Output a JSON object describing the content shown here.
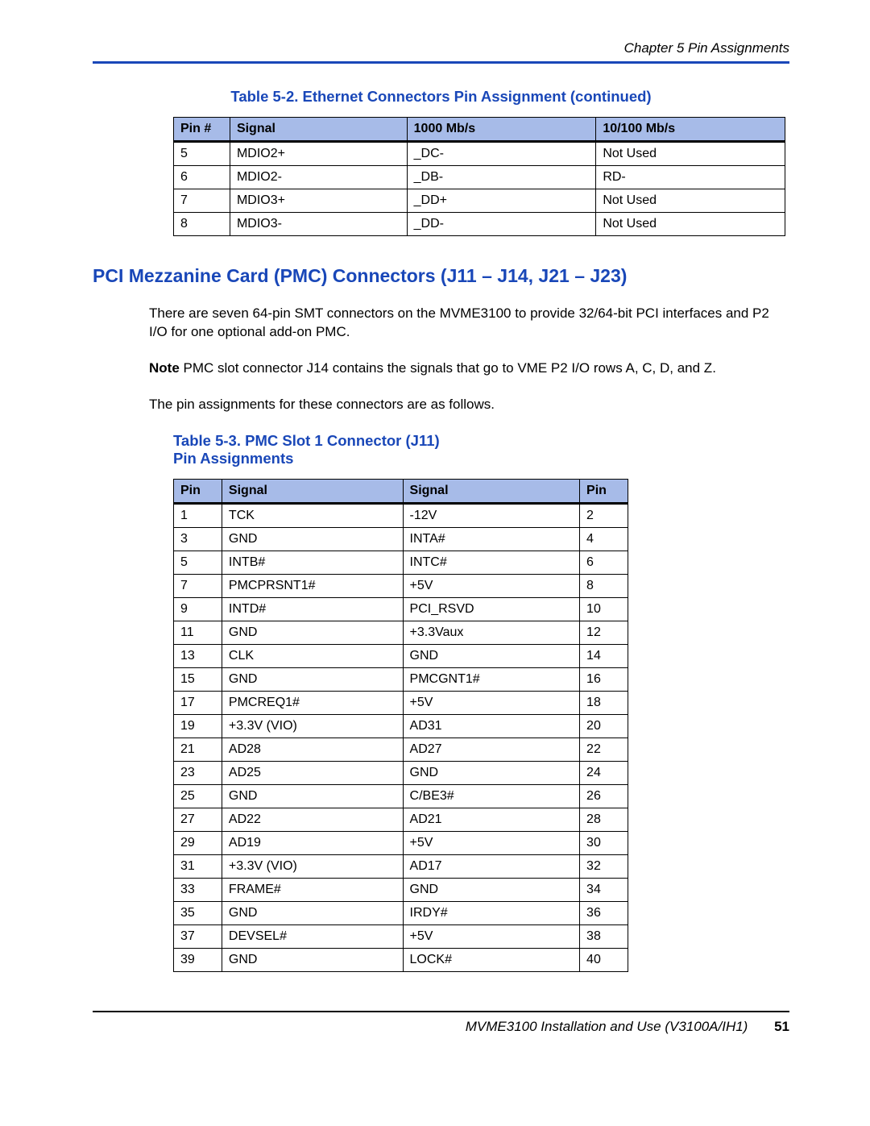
{
  "chapter_header": "Chapter 5  Pin Assignments",
  "table1": {
    "caption": "Table 5-2. Ethernet Connectors Pin Assignment (continued)",
    "caption_color": "#1947b8",
    "header_bg": "#a7bbe8",
    "columns": [
      "Pin #",
      "Signal",
      "1000 Mb/s",
      "10/100 Mb/s"
    ],
    "rows": [
      [
        "5",
        "MDIO2+",
        "_DC-",
        "Not Used"
      ],
      [
        "6",
        "MDIO2-",
        "_DB-",
        "RD-"
      ],
      [
        "7",
        "MDIO3+",
        "_DD+",
        "Not Used"
      ],
      [
        "8",
        "MDIO3-",
        "_DD-",
        "Not Used"
      ]
    ]
  },
  "section_heading": "PCI Mezzanine Card (PMC) Connectors (J11 – J14, J21 – J23)",
  "section_heading_color": "#1947b8",
  "para1": "There are seven 64-pin SMT connectors on the MVME3100 to provide 32/64-bit PCI interfaces and P2 I/O for one optional add-on PMC.",
  "note_label": "Note",
  "note_text": "  PMC slot connector J14 contains the signals that go to VME P2 I/O rows A, C, D, and Z.",
  "para2": "The pin assignments for these connectors are as follows.",
  "table2": {
    "caption_line1": "Table 5-3. PMC Slot 1 Connector (J11)",
    "caption_line2": "Pin Assignments",
    "caption_color": "#1947b8",
    "header_bg": "#a7bbe8",
    "columns": [
      "Pin",
      "Signal",
      "Signal",
      "Pin"
    ],
    "rows": [
      [
        "1",
        "TCK",
        "-12V",
        "2"
      ],
      [
        "3",
        "GND",
        "INTA#",
        "4"
      ],
      [
        "5",
        "INTB#",
        "INTC#",
        "6"
      ],
      [
        "7",
        "PMCPRSNT1#",
        "+5V",
        "8"
      ],
      [
        "9",
        "INTD#",
        "PCI_RSVD",
        "10"
      ],
      [
        "11",
        "GND",
        "+3.3Vaux",
        "12"
      ],
      [
        "13",
        "CLK",
        "GND",
        "14"
      ],
      [
        "15",
        "GND",
        "PMCGNT1#",
        "16"
      ],
      [
        "17",
        "PMCREQ1#",
        "+5V",
        "18"
      ],
      [
        "19",
        "+3.3V (VIO)",
        "AD31",
        "20"
      ],
      [
        "21",
        "AD28",
        "AD27",
        "22"
      ],
      [
        "23",
        "AD25",
        "GND",
        "24"
      ],
      [
        "25",
        "GND",
        "C/BE3#",
        "26"
      ],
      [
        "27",
        "AD22",
        "AD21",
        "28"
      ],
      [
        "29",
        "AD19",
        "+5V",
        "30"
      ],
      [
        "31",
        "+3.3V (VIO)",
        "AD17",
        "32"
      ],
      [
        "33",
        "FRAME#",
        "GND",
        "34"
      ],
      [
        "35",
        "GND",
        "IRDY#",
        "36"
      ],
      [
        "37",
        "DEVSEL#",
        "+5V",
        "38"
      ],
      [
        "39",
        "GND",
        "LOCK#",
        "40"
      ]
    ]
  },
  "footer": {
    "title": "MVME3100 Installation and Use (V3100A/IH1)",
    "page": "51"
  }
}
